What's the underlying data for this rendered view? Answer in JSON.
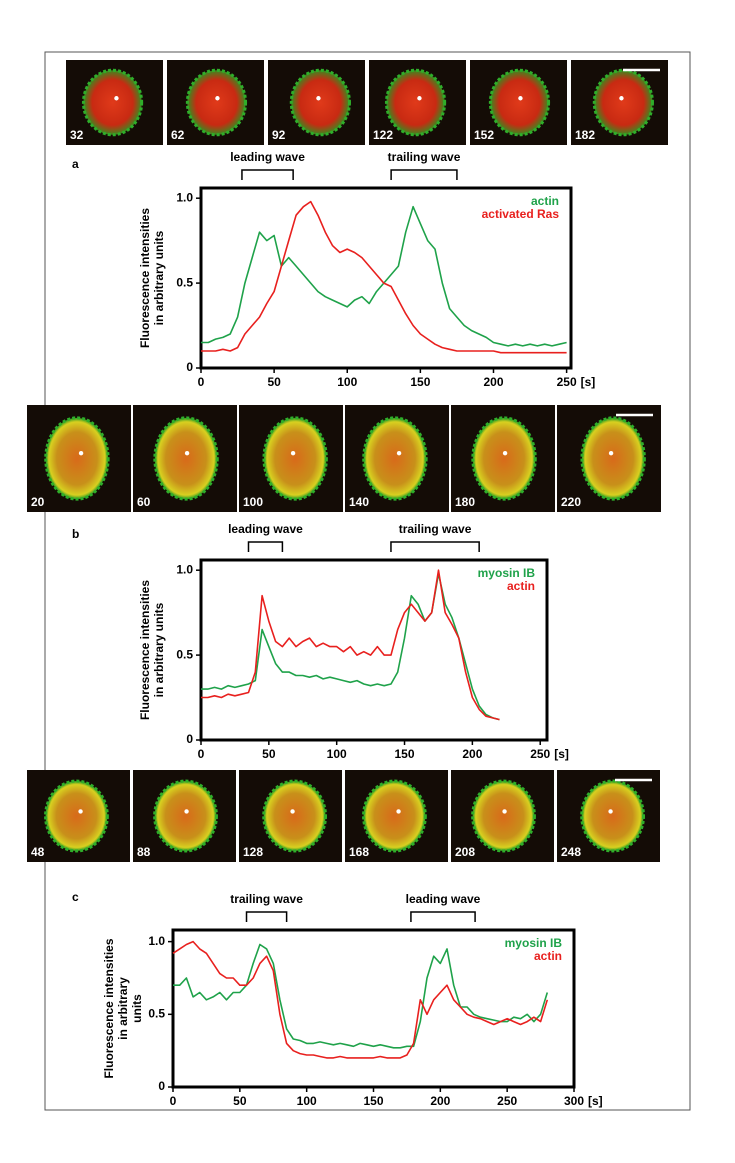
{
  "chart_data": [
    {
      "type": "line",
      "panel": "a",
      "frames": [
        32,
        62,
        92,
        122,
        152,
        182
      ],
      "annotations": [
        {
          "text": "leading wave",
          "x": [
            28,
            63
          ]
        },
        {
          "text": "trailing wave",
          "x": [
            130,
            175
          ]
        }
      ],
      "ylabel": [
        "Fluorescence intensities",
        "in arbitrary units"
      ],
      "xlabel": "[s]",
      "xlim": [
        0,
        253
      ],
      "xticks": [
        0,
        50,
        100,
        150,
        200,
        250
      ],
      "ylim": [
        0,
        1.06
      ],
      "yticks": [
        0,
        0.5,
        {
          "value": 1,
          "label": "1.0"
        }
      ],
      "x": [
        0,
        5,
        10,
        15,
        20,
        25,
        30,
        35,
        40,
        45,
        50,
        55,
        60,
        65,
        70,
        75,
        80,
        85,
        90,
        95,
        100,
        105,
        110,
        115,
        120,
        125,
        130,
        135,
        140,
        145,
        150,
        155,
        160,
        165,
        170,
        175,
        180,
        185,
        190,
        195,
        200,
        205,
        210,
        215,
        220,
        225,
        230,
        235,
        240,
        245,
        250
      ],
      "series": [
        {
          "name": "actin",
          "color": "#1fa24a",
          "values": [
            0.15,
            0.15,
            0.17,
            0.18,
            0.2,
            0.3,
            0.5,
            0.65,
            0.8,
            0.75,
            0.78,
            0.6,
            0.65,
            0.6,
            0.55,
            0.5,
            0.45,
            0.42,
            0.4,
            0.38,
            0.36,
            0.4,
            0.42,
            0.38,
            0.45,
            0.5,
            0.55,
            0.6,
            0.8,
            0.95,
            0.85,
            0.75,
            0.7,
            0.5,
            0.35,
            0.3,
            0.25,
            0.22,
            0.2,
            0.18,
            0.15,
            0.14,
            0.13,
            0.14,
            0.13,
            0.14,
            0.13,
            0.14,
            0.13,
            0.14,
            0.15
          ]
        },
        {
          "name": "activated Ras",
          "color": "#e8201e",
          "values": [
            0.1,
            0.1,
            0.1,
            0.11,
            0.1,
            0.12,
            0.2,
            0.25,
            0.3,
            0.38,
            0.45,
            0.6,
            0.75,
            0.9,
            0.95,
            0.98,
            0.9,
            0.8,
            0.72,
            0.68,
            0.7,
            0.68,
            0.65,
            0.6,
            0.55,
            0.5,
            0.48,
            0.4,
            0.32,
            0.25,
            0.2,
            0.17,
            0.14,
            0.12,
            0.11,
            0.1,
            0.1,
            0.1,
            0.1,
            0.1,
            0.1,
            0.09,
            0.09,
            0.09,
            0.09,
            0.09,
            0.09,
            0.09,
            0.09,
            0.09,
            0.09
          ]
        }
      ]
    },
    {
      "type": "line",
      "panel": "b",
      "frames": [
        20,
        60,
        100,
        140,
        180,
        220
      ],
      "annotations": [
        {
          "text": "leading wave",
          "x": [
            35,
            60
          ]
        },
        {
          "text": "trailing wave",
          "x": [
            140,
            205
          ]
        }
      ],
      "ylabel": [
        "Fluorescence intensities",
        "in arbitrary units"
      ],
      "xlabel": "[s]",
      "xlim": [
        0,
        255
      ],
      "xticks": [
        0,
        50,
        100,
        150,
        200,
        250
      ],
      "ylim": [
        0,
        1.06
      ],
      "yticks": [
        0,
        0.5,
        {
          "value": 1,
          "label": "1.0"
        }
      ],
      "x": [
        0,
        5,
        10,
        15,
        20,
        25,
        30,
        35,
        40,
        45,
        50,
        55,
        60,
        65,
        70,
        75,
        80,
        85,
        90,
        95,
        100,
        105,
        110,
        115,
        120,
        125,
        130,
        135,
        140,
        145,
        150,
        155,
        160,
        165,
        170,
        175,
        180,
        185,
        190,
        195,
        200,
        205,
        210,
        215,
        220
      ],
      "series": [
        {
          "name": "myosin IB",
          "color": "#1fa24a",
          "values": [
            0.3,
            0.3,
            0.31,
            0.3,
            0.32,
            0.31,
            0.32,
            0.33,
            0.35,
            0.65,
            0.55,
            0.45,
            0.4,
            0.4,
            0.38,
            0.38,
            0.37,
            0.38,
            0.36,
            0.37,
            0.36,
            0.35,
            0.34,
            0.35,
            0.33,
            0.32,
            0.33,
            0.32,
            0.33,
            0.4,
            0.6,
            0.85,
            0.8,
            0.7,
            0.75,
            0.98,
            0.8,
            0.72,
            0.6,
            0.45,
            0.3,
            0.2,
            0.15,
            0.13,
            0.12
          ]
        },
        {
          "name": "actin",
          "color": "#e8201e",
          "values": [
            0.25,
            0.25,
            0.26,
            0.25,
            0.27,
            0.26,
            0.27,
            0.28,
            0.4,
            0.85,
            0.7,
            0.58,
            0.55,
            0.6,
            0.55,
            0.58,
            0.6,
            0.55,
            0.57,
            0.55,
            0.55,
            0.52,
            0.55,
            0.5,
            0.52,
            0.5,
            0.55,
            0.5,
            0.5,
            0.65,
            0.75,
            0.8,
            0.75,
            0.7,
            0.75,
            1.0,
            0.75,
            0.68,
            0.6,
            0.4,
            0.25,
            0.18,
            0.14,
            0.13,
            0.12
          ]
        }
      ]
    },
    {
      "type": "line",
      "panel": "c",
      "frames": [
        48,
        88,
        128,
        168,
        208,
        248
      ],
      "annotations": [
        {
          "text": "trailing wave",
          "x": [
            55,
            85
          ]
        },
        {
          "text": "leading wave",
          "x": [
            178,
            226
          ]
        }
      ],
      "ylabel": [
        "Fluorescence intensities",
        "in arbitrary",
        "units"
      ],
      "xlabel": "[s]",
      "xlim": [
        0,
        300
      ],
      "xticks": [
        0,
        50,
        100,
        150,
        200,
        250,
        300
      ],
      "ylim": [
        0,
        1.08
      ],
      "yticks": [
        0,
        0.5,
        {
          "value": 1,
          "label": "1.0"
        }
      ],
      "x": [
        0,
        5,
        10,
        15,
        20,
        25,
        30,
        35,
        40,
        45,
        50,
        55,
        60,
        65,
        70,
        75,
        80,
        85,
        90,
        95,
        100,
        105,
        110,
        115,
        120,
        125,
        130,
        135,
        140,
        145,
        150,
        155,
        160,
        165,
        170,
        175,
        180,
        185,
        190,
        195,
        200,
        205,
        210,
        215,
        220,
        225,
        230,
        235,
        240,
        245,
        250,
        255,
        260,
        265,
        270,
        275,
        280
      ],
      "series": [
        {
          "name": "myosin IB",
          "color": "#1fa24a",
          "values": [
            0.7,
            0.7,
            0.75,
            0.62,
            0.65,
            0.6,
            0.62,
            0.65,
            0.6,
            0.65,
            0.65,
            0.7,
            0.85,
            0.98,
            0.95,
            0.85,
            0.6,
            0.4,
            0.33,
            0.32,
            0.3,
            0.3,
            0.31,
            0.3,
            0.29,
            0.3,
            0.29,
            0.28,
            0.3,
            0.29,
            0.28,
            0.29,
            0.28,
            0.27,
            0.27,
            0.28,
            0.28,
            0.45,
            0.75,
            0.9,
            0.85,
            0.95,
            0.7,
            0.55,
            0.55,
            0.5,
            0.48,
            0.47,
            0.46,
            0.45,
            0.45,
            0.48,
            0.47,
            0.5,
            0.45,
            0.5,
            0.65
          ]
        },
        {
          "name": "actin",
          "color": "#e8201e",
          "values": [
            0.92,
            0.95,
            0.98,
            1.0,
            0.95,
            0.92,
            0.85,
            0.78,
            0.75,
            0.75,
            0.7,
            0.7,
            0.75,
            0.85,
            0.9,
            0.8,
            0.5,
            0.3,
            0.25,
            0.23,
            0.22,
            0.22,
            0.21,
            0.2,
            0.2,
            0.21,
            0.2,
            0.2,
            0.2,
            0.2,
            0.2,
            0.21,
            0.2,
            0.2,
            0.2,
            0.22,
            0.3,
            0.6,
            0.5,
            0.6,
            0.65,
            0.7,
            0.6,
            0.55,
            0.5,
            0.48,
            0.47,
            0.45,
            0.43,
            0.45,
            0.47,
            0.45,
            0.43,
            0.45,
            0.48,
            0.45,
            0.6
          ]
        }
      ]
    }
  ]
}
